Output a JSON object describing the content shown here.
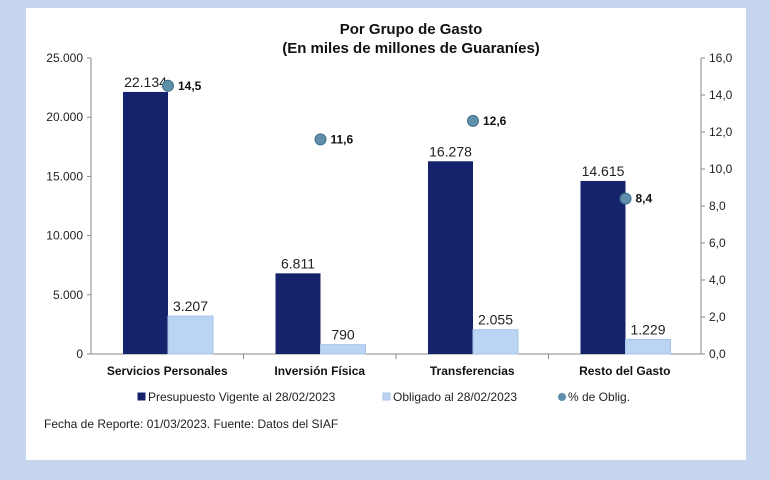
{
  "chart_data": {
    "type": "bar",
    "title": "Por Grupo de Gasto",
    "subtitle": "(En miles de millones de Guaraníes)",
    "categories": [
      "Servicios Personales",
      "Inversión Física",
      "Transferencias",
      "Resto del Gasto"
    ],
    "series": [
      {
        "name": "Presupuesto Vigente al 28/02/2023",
        "values": [
          22134,
          6811,
          16278,
          14615
        ],
        "labels": [
          "22.134",
          "6.811",
          "16.278",
          "14.615"
        ],
        "color": "#14236b",
        "axis": "left"
      },
      {
        "name": "Obligado al 28/02/2023",
        "values": [
          3207,
          790,
          2055,
          1229
        ],
        "labels": [
          "3.207",
          "790",
          "2.055",
          "1.229"
        ],
        "color": "#bcd4f4",
        "axis": "left"
      },
      {
        "name": "% de Oblig.",
        "type": "scatter",
        "values": [
          14.5,
          11.6,
          12.6,
          8.4
        ],
        "labels": [
          "14,5",
          "11,6",
          "12,6",
          "8,4"
        ],
        "color": "#5f8faa",
        "axis": "right"
      }
    ],
    "ylim": [
      0,
      25000
    ],
    "yticks": [
      "0",
      "5.000",
      "10.000",
      "15.000",
      "20.000",
      "25.000"
    ],
    "y2lim": [
      0,
      16
    ],
    "y2ticks": [
      "0,0",
      "2,0",
      "4,0",
      "6,0",
      "8,0",
      "10,0",
      "12,0",
      "14,0",
      "16,0"
    ],
    "legend": "bottom"
  },
  "footer": {
    "source": "Fecha de Reporte: 01/03/2023. Fuente: Datos del SIAF"
  }
}
